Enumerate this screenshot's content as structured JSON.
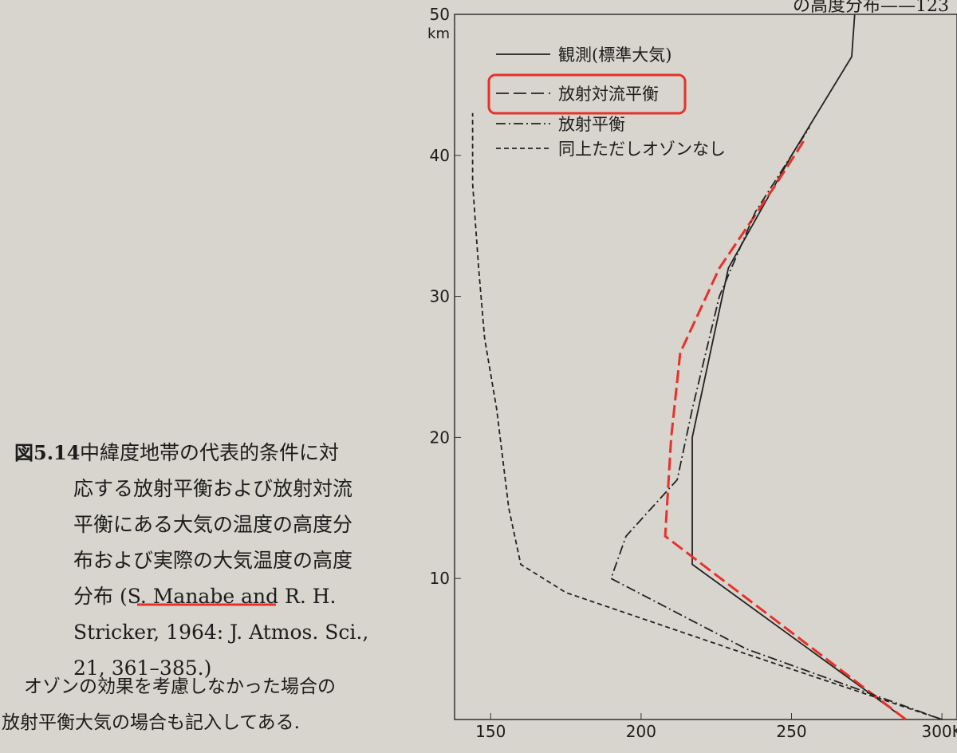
{
  "header": "の高度分布——123",
  "caption": {
    "label": "図5.14",
    "lines": [
      "中緯度地帯の代表的条件に対",
      "応する放射平衡および放射対流",
      "平衡にある大気の温度の高度分",
      "布および実際の大気温度の高度",
      "分布 (S. Manabe and R. H.",
      "Stricker, 1964: J. Atmos. Sci.,",
      "21, 361–385.)"
    ],
    "note": [
      "オゾンの効果を考慮しなかった場合の",
      "放射平衡大気の場合も記入してある."
    ]
  },
  "chart_data": {
    "type": "line",
    "y_unit": "km",
    "xlim": [
      138,
      305
    ],
    "ylim": [
      0,
      50
    ],
    "xticks": [
      150,
      200,
      250,
      {
        "value": 300,
        "label": "300K"
      }
    ],
    "yticks": [
      10,
      20,
      30,
      40,
      50
    ],
    "series": [
      {
        "name": "観測(標準大気)",
        "color": "#222222",
        "style": "solid",
        "x": [
          288,
          217,
          217,
          222,
          229,
          250,
          270,
          271
        ],
        "values": [
          0,
          11,
          20,
          25,
          32,
          40,
          47,
          50
        ]
      },
      {
        "name": "放射対流平衡",
        "color": "#e8312a",
        "style": "long-dash",
        "x": [
          288,
          208,
          210,
          213,
          226,
          245,
          254
        ],
        "values": [
          0,
          13,
          20,
          26,
          32,
          38,
          41
        ]
      },
      {
        "name": "放射平衡",
        "color": "#222222",
        "style": "dash-dot",
        "x": [
          300,
          235,
          190,
          195,
          212,
          217,
          226,
          238,
          256
        ],
        "values": [
          0,
          5,
          10,
          13,
          17,
          22,
          30,
          36,
          42
        ]
      },
      {
        "name": "同上ただしオゾンなし",
        "color": "#222222",
        "style": "short-dash",
        "x": [
          300,
          230,
          175,
          160,
          156,
          152,
          148,
          146,
          144,
          144
        ],
        "values": [
          0,
          5,
          9,
          11,
          15,
          22,
          27,
          32,
          38,
          43
        ]
      }
    ]
  }
}
